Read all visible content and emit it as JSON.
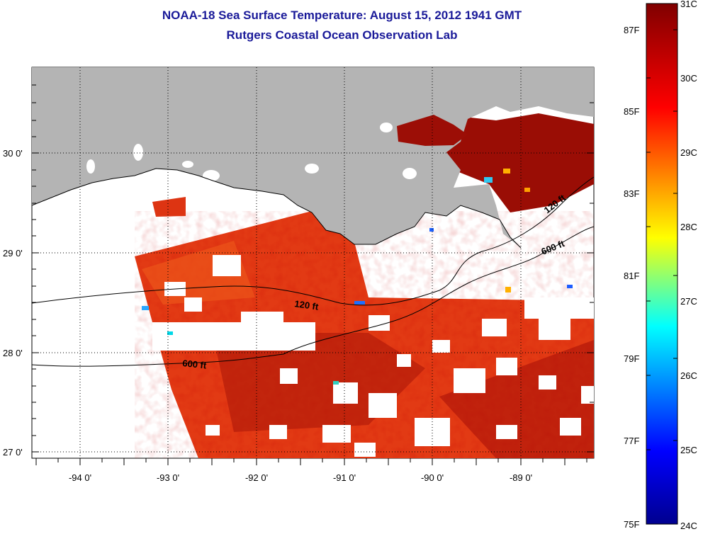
{
  "title_line1": "NOAA-18 Sea Surface Temperature:  August 15, 2012 1941 GMT",
  "title_line2": "Rutgers Coastal Ocean Observation Lab",
  "map": {
    "lat_labels": [
      "30 0'",
      "29 0'",
      "28 0'",
      "27 0'"
    ],
    "lon_labels": [
      "-94 0'",
      "-93 0'",
      "-92 0'",
      "-91 0'",
      "-90 0'",
      "-89 0'"
    ],
    "contour_labels": [
      "120 ft",
      "600 ft",
      "120 ft",
      "600 ft"
    ],
    "land_color": "#b4b4b4",
    "cloud_color": "#ffffff"
  },
  "colorbar": {
    "range_c": [
      24,
      31
    ],
    "celsius_labels": [
      "31C",
      "30C",
      "29C",
      "28C",
      "27C",
      "26C",
      "25C",
      "24C"
    ],
    "fahrenheit_labels": [
      "87F",
      "85F",
      "83F",
      "81F",
      "79F",
      "77F",
      "75F"
    ],
    "colormap": [
      "#00008f",
      "#0000ff",
      "#00ffff",
      "#ffff00",
      "#ff0000",
      "#800000"
    ]
  }
}
